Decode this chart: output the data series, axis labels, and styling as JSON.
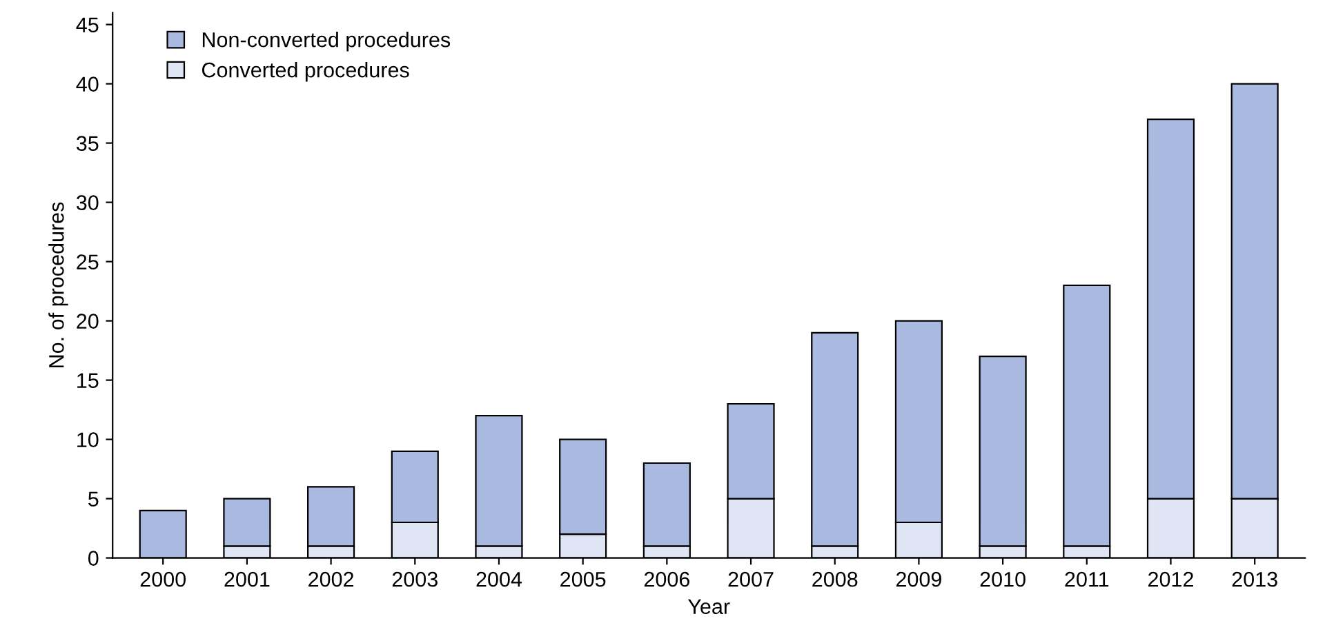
{
  "chart_data": {
    "type": "bar",
    "stacked": true,
    "xlabel": "Year",
    "ylabel": "No. of procedures",
    "categories": [
      "2000",
      "2001",
      "2002",
      "2003",
      "2004",
      "2005",
      "2006",
      "2007",
      "2008",
      "2009",
      "2010",
      "2011",
      "2012",
      "2013"
    ],
    "series": [
      {
        "name": "Converted procedures",
        "color": "#dfe5f4",
        "values": [
          0,
          1,
          1,
          3,
          1,
          2,
          1,
          5,
          1,
          3,
          1,
          1,
          5,
          5
        ]
      },
      {
        "name": "Non-converted procedures",
        "color": "#a9b9e0",
        "values": [
          4,
          4,
          5,
          6,
          11,
          8,
          7,
          8,
          18,
          17,
          16,
          22,
          32,
          35
        ]
      }
    ],
    "ylim": [
      0,
      46
    ],
    "yticks": [
      0,
      5,
      10,
      15,
      20,
      25,
      30,
      35,
      40,
      45
    ],
    "grid": false,
    "legend": "top left"
  }
}
